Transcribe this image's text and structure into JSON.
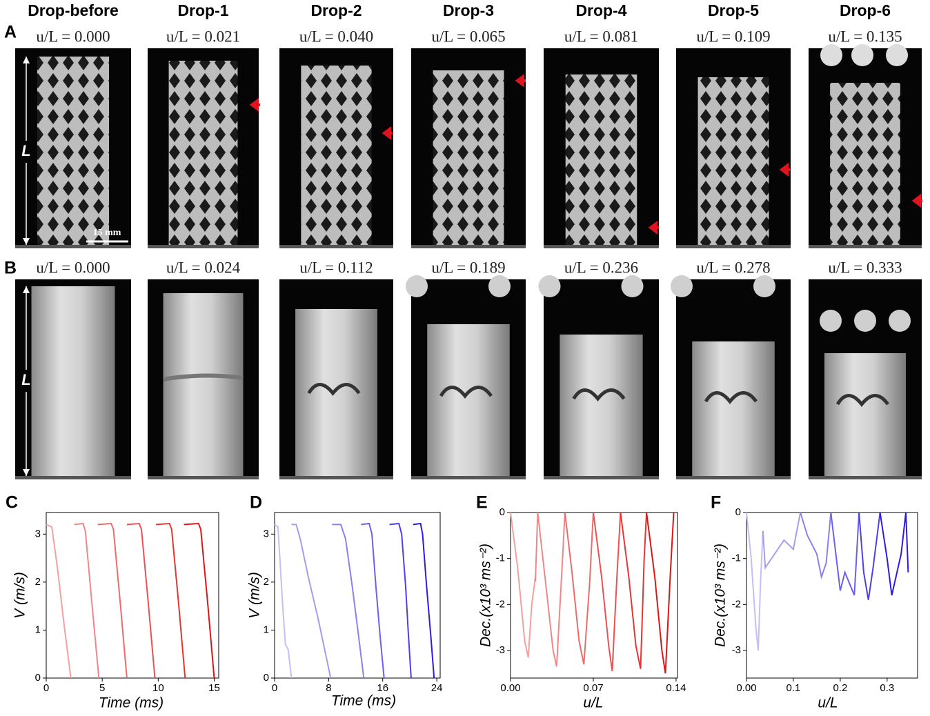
{
  "figure": {
    "panel_labels": [
      "A",
      "B",
      "C",
      "D",
      "E",
      "F"
    ],
    "columns": [
      "Drop-before",
      "Drop-1",
      "Drop-2",
      "Drop-3",
      "Drop-4",
      "Drop-5",
      "Drop-6"
    ],
    "row_a": {
      "strain_labels": [
        "u/L = 0.000",
        "u/L = 0.021",
        "u/L = 0.040",
        "u/L = 0.065",
        "u/L = 0.081",
        "u/L = 0.109",
        "u/L = 0.135"
      ],
      "length_label": "L",
      "scale_bar": "15 mm"
    },
    "row_b": {
      "strain_labels": [
        "u/L = 0.000",
        "u/L = 0.024",
        "u/L = 0.112",
        "u/L = 0.189",
        "u/L = 0.236",
        "u/L = 0.278",
        "u/L = 0.333"
      ],
      "length_label": "L"
    }
  },
  "chart_data": [
    {
      "type": "line",
      "x_label": "Time (ms)",
      "y_label": "V (m/s)",
      "xlim": [
        0,
        15.4
      ],
      "ylim": [
        0,
        3.45
      ],
      "xticks": [
        0,
        5,
        10,
        15
      ],
      "yticks": [
        0,
        1,
        2,
        3
      ],
      "series": [
        {
          "color": "#f5a0a0",
          "x": [
            0,
            0.5,
            1.0,
            1.6,
            2.2
          ],
          "values": [
            3.2,
            3.15,
            2.3,
            1.1,
            0
          ]
        },
        {
          "color": "#f28686",
          "x": [
            2.5,
            3.3,
            3.5,
            4.1,
            4.7
          ],
          "values": [
            3.2,
            3.22,
            3.05,
            1.5,
            0
          ]
        },
        {
          "color": "#ef6a6a",
          "x": [
            4.6,
            5.8,
            6.0,
            6.6,
            7.2
          ],
          "values": [
            3.2,
            3.22,
            3.1,
            1.6,
            0
          ]
        },
        {
          "color": "#ec5050",
          "x": [
            7.2,
            8.3,
            8.5,
            9.1,
            9.7
          ],
          "values": [
            3.2,
            3.22,
            3.1,
            1.6,
            0
          ]
        },
        {
          "color": "#e83434",
          "x": [
            9.8,
            11.0,
            11.2,
            11.8,
            12.4
          ],
          "values": [
            3.2,
            3.22,
            3.1,
            1.6,
            0
          ]
        },
        {
          "color": "#e01414",
          "x": [
            12.3,
            13.6,
            13.8,
            14.4,
            15.0
          ],
          "values": [
            3.2,
            3.22,
            3.1,
            1.6,
            0
          ]
        }
      ]
    },
    {
      "type": "line",
      "x_label": "Time (ms)",
      "y_label": "V (m/s)",
      "xlim": [
        0,
        24.5
      ],
      "ylim": [
        0,
        3.45
      ],
      "xticks": [
        0,
        8,
        16,
        24
      ],
      "yticks": [
        0,
        1,
        2,
        3
      ],
      "series": [
        {
          "color": "#c4bff5",
          "x": [
            0,
            0.5,
            1.2,
            1.6,
            2.0,
            2.5
          ],
          "values": [
            3.2,
            3.15,
            1.5,
            0.7,
            0.6,
            0
          ]
        },
        {
          "color": "#a59cf0",
          "x": [
            2.5,
            3.2,
            3.8,
            5,
            6.5,
            8.3
          ],
          "values": [
            3.2,
            3.2,
            2.9,
            2.1,
            1.2,
            0
          ]
        },
        {
          "color": "#8a80ee",
          "x": [
            8.5,
            9.8,
            10.5,
            11.5,
            12.5,
            13.2
          ],
          "values": [
            3.2,
            3.2,
            2.9,
            1.9,
            0.8,
            0
          ]
        },
        {
          "color": "#6a5ff0",
          "x": [
            12.8,
            14,
            14.4,
            15,
            15.6,
            16.2
          ],
          "values": [
            3.2,
            3.22,
            3.0,
            1.9,
            0.9,
            0
          ]
        },
        {
          "color": "#4a3ef0",
          "x": [
            17.0,
            18.4,
            18.8,
            19.4,
            19.8,
            20.2
          ],
          "values": [
            3.2,
            3.22,
            3.0,
            1.9,
            0.9,
            0
          ]
        },
        {
          "color": "#2b1ae8",
          "x": [
            20.5,
            21.6,
            21.9,
            22.5,
            23.1,
            23.6
          ],
          "values": [
            3.2,
            3.22,
            3.0,
            1.9,
            0.9,
            0
          ]
        }
      ]
    },
    {
      "type": "line",
      "x_label": "u/L",
      "y_label": "Dec.(x10³ ms⁻²)",
      "xlim": [
        0,
        0.1412
      ],
      "ylim": [
        -3.6,
        0
      ],
      "xticks": [
        {
          "value": 0,
          "label": "0.00"
        },
        0.07,
        0.14
      ],
      "yticks": [
        0,
        -1,
        -2,
        -3
      ],
      "series": [
        {
          "color": "#f5a0a0",
          "x": [
            0,
            0.006,
            0.012,
            0.015,
            0.018,
            0.021
          ],
          "values": [
            0,
            -1.2,
            -2.8,
            -3.15,
            -2.0,
            -1.4
          ]
        },
        {
          "color": "#f28686",
          "x": [
            0.021,
            0.023,
            0.03,
            0.036,
            0.039,
            0.044,
            0.046
          ],
          "values": [
            -1.5,
            0,
            -1.6,
            -3.0,
            -3.35,
            -1.0,
            0
          ]
        },
        {
          "color": "#ef6a6a",
          "x": [
            0.046,
            0.052,
            0.058,
            0.062,
            0.067,
            0.07
          ],
          "values": [
            0,
            -1.3,
            -2.8,
            -3.3,
            -1.5,
            0
          ]
        },
        {
          "color": "#ec5050",
          "x": [
            0.07,
            0.077,
            0.083,
            0.086,
            0.09,
            0.093
          ],
          "values": [
            0,
            -1.4,
            -2.9,
            -3.45,
            -1.4,
            0
          ]
        },
        {
          "color": "#e83434",
          "x": [
            0.093,
            0.1,
            0.106,
            0.11,
            0.113,
            0.115
          ],
          "values": [
            0,
            -1.4,
            -2.9,
            -3.4,
            -1.0,
            0
          ]
        },
        {
          "color": "#e01414",
          "x": [
            0.115,
            0.122,
            0.128,
            0.131,
            0.135,
            0.138
          ],
          "values": [
            0,
            -1.4,
            -3.0,
            -3.5,
            -1.4,
            0
          ]
        }
      ]
    },
    {
      "type": "line",
      "x_label": "u/L",
      "y_label": "Dec.(x10³ ms⁻²)",
      "xlim": [
        0,
        0.365
      ],
      "ylim": [
        -3.6,
        0
      ],
      "xticks": [
        {
          "value": 0,
          "label": "0.00"
        },
        0.1,
        0.2,
        0.3
      ],
      "yticks": [
        0,
        -1,
        -2,
        -3
      ],
      "series": [
        {
          "color": "#c4bff5",
          "x": [
            0,
            0.01,
            0.02,
            0.025,
            0.03,
            0.035
          ],
          "values": [
            0,
            -1.0,
            -2.5,
            -3.0,
            -1.5,
            -0.4
          ]
        },
        {
          "color": "#a59cf0",
          "x": [
            0.035,
            0.04,
            0.06,
            0.08,
            0.1,
            0.115
          ],
          "values": [
            -0.4,
            -1.2,
            -0.9,
            -0.6,
            -0.8,
            0
          ]
        },
        {
          "color": "#8a80ee",
          "x": [
            0.115,
            0.13,
            0.15,
            0.16,
            0.17,
            0.18
          ],
          "values": [
            0,
            -0.5,
            -0.9,
            -1.4,
            -1.1,
            0
          ]
        },
        {
          "color": "#6a5ff0",
          "x": [
            0.18,
            0.2,
            0.21,
            0.23,
            0.24
          ],
          "values": [
            0,
            -1.7,
            -1.3,
            -1.8,
            0
          ]
        },
        {
          "color": "#4a3ef0",
          "x": [
            0.24,
            0.25,
            0.26,
            0.27,
            0.285
          ],
          "values": [
            0,
            -1.3,
            -1.9,
            -1.2,
            0
          ]
        },
        {
          "color": "#2b1ae8",
          "x": [
            0.285,
            0.3,
            0.31,
            0.33,
            0.34,
            0.345
          ],
          "values": [
            0,
            -1.0,
            -1.8,
            -0.9,
            0,
            -1.3
          ]
        }
      ]
    }
  ]
}
